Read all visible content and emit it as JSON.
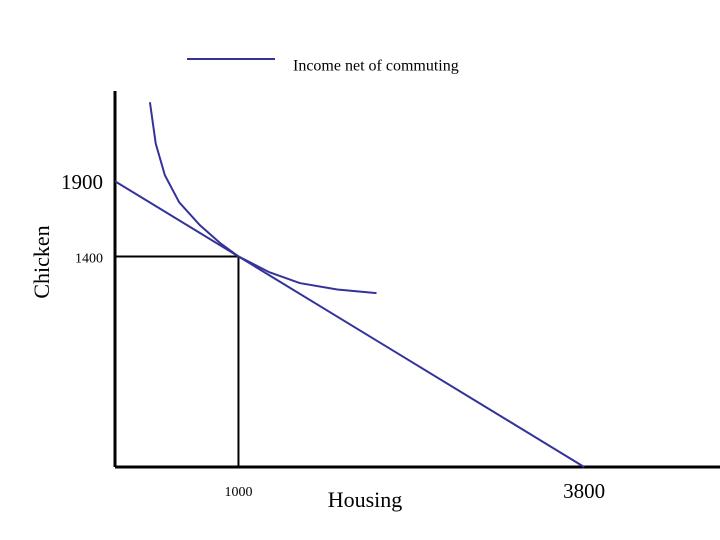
{
  "chart_data": {
    "type": "line",
    "x_label": "Housing",
    "y_label": "Chicken",
    "xlim": [
      0,
      4900
    ],
    "ylim": [
      0,
      2500
    ],
    "xticks": [
      1000,
      3800
    ],
    "yticks": [
      1400,
      1900
    ],
    "legend": "top",
    "series": [
      {
        "name": "Income net of commuting",
        "color": "#333399",
        "x": [
          0,
          3800
        ],
        "values": [
          1900,
          0
        ]
      },
      {
        "color": "#333399",
        "x": [
          283,
          330,
          404,
          520,
          687,
          850,
          1000,
          1250,
          1496,
          1800,
          2118
        ],
        "values": [
          2425,
          2150,
          1940,
          1760,
          1608,
          1490,
          1400,
          1295,
          1223,
          1180,
          1156
        ]
      }
    ]
  }
}
